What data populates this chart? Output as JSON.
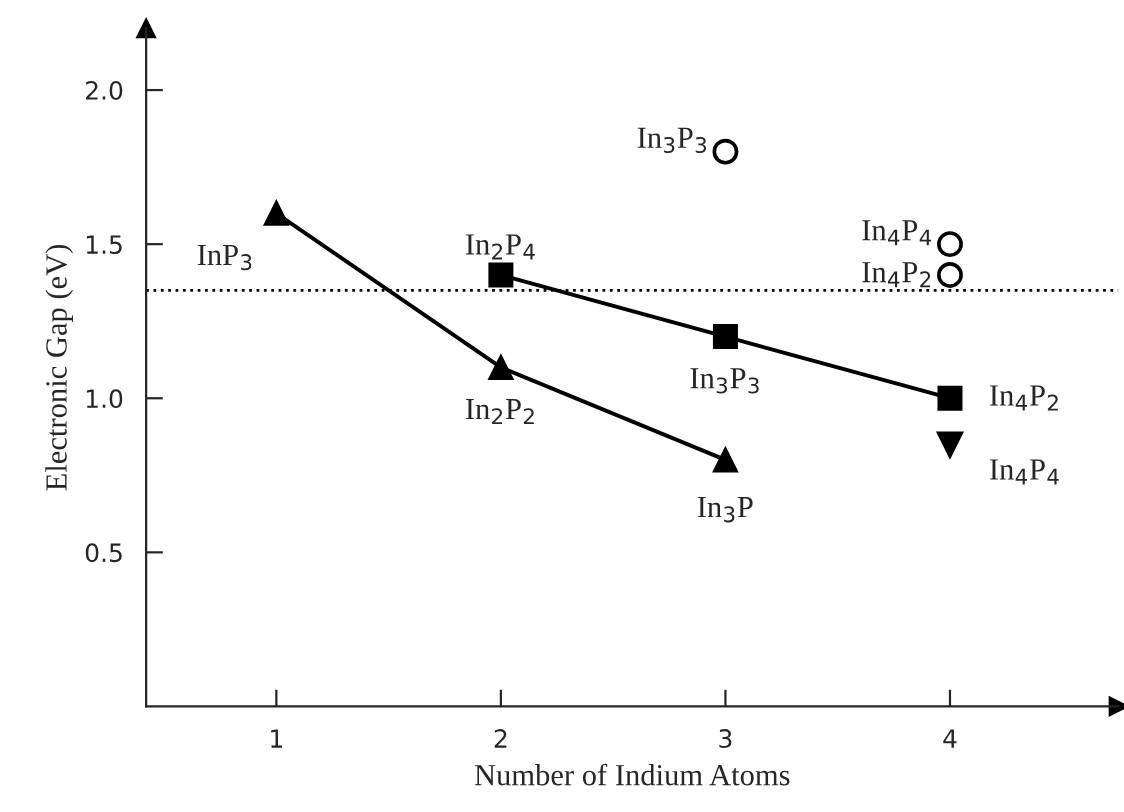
{
  "chart_data": {
    "type": "line",
    "xlabel": "Number of Indium Atoms",
    "ylabel": "Electronic Gap (eV)",
    "xlim": [
      0.42,
      4.75
    ],
    "ylim": [
      0,
      2.2
    ],
    "xticks": [
      1,
      2,
      3,
      4
    ],
    "yticks": [
      0.5,
      {
        "value": 1,
        "label": "1.0"
      },
      1.5,
      {
        "value": 2,
        "label": "2.0"
      }
    ],
    "grid": false,
    "legend": false,
    "series": [
      {
        "color": "#000000",
        "marker": "triangle",
        "line_style": "solid",
        "x": [
          1,
          2,
          3
        ],
        "values": [
          1.6,
          1.1,
          0.8
        ]
      },
      {
        "color": "#000000",
        "marker": "square",
        "line_style": "solid",
        "x": [
          2,
          3,
          4
        ],
        "values": [
          1.4,
          1.2,
          1.0
        ]
      },
      {
        "type": "scatter",
        "color": "#000000",
        "marker": "triangle_down",
        "x": [
          4
        ],
        "values": [
          0.85
        ]
      },
      {
        "type": "scatter",
        "color": "#000000",
        "marker": "circle_open",
        "x": [
          3,
          4,
          4
        ],
        "values": [
          1.8,
          1.5,
          1.4
        ]
      }
    ],
    "ref_lines": [
      {
        "axis": "y",
        "value": 1.35,
        "line_style": "dotted",
        "color": "#000000"
      }
    ],
    "annotations": [
      {
        "text": "InP$_{3}$",
        "x": 1,
        "y": 1.6
      },
      {
        "text": "In$_{2}$P$_{2}$",
        "x": 2,
        "y": 1.1
      },
      {
        "text": "In$_{3}$P",
        "x": 3,
        "y": 0.8
      },
      {
        "text": "In$_{2}$P$_{4}$",
        "x": 2,
        "y": 1.4
      },
      {
        "text": "In$_{3}$P$_{3}$",
        "x": 3,
        "y": 1.2
      },
      {
        "text": "In$_{4}$P$_{2}$",
        "x": 4,
        "y": 1.0
      },
      {
        "text": "In$_{4}$P$_{4}$",
        "x": 4,
        "y": 0.85
      },
      {
        "text": "In$_{3}$P$_{3}$",
        "x": 3,
        "y": 1.8
      },
      {
        "text": "In$_{4}$P$_{4}$",
        "x": 4,
        "y": 1.5
      },
      {
        "text": "In$_{4}$P$_{2}$",
        "x": 4,
        "y": 1.4
      }
    ]
  }
}
